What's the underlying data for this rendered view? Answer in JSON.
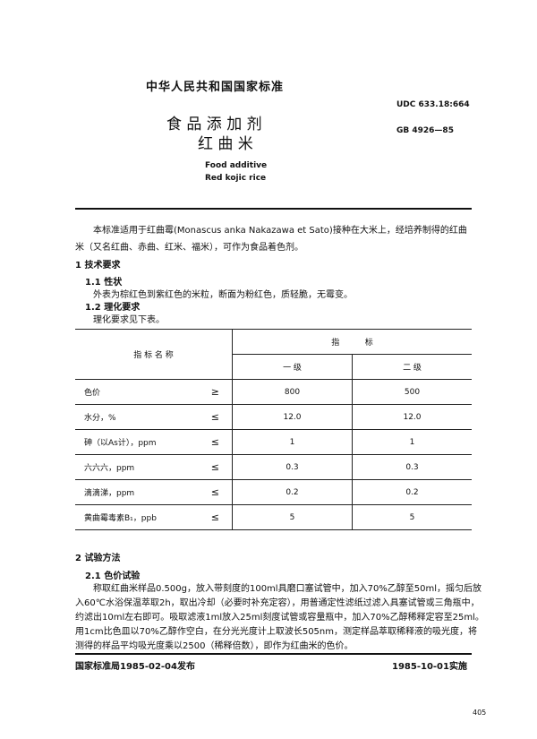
{
  "header": {
    "national_standard": "中华人民共和国国家标准",
    "udc": "UDC 633.18:664",
    "gb_number": "GB 4926—85",
    "title_line1": "食 品 添 加 剂",
    "title_line2": "红 曲 米",
    "english_line1": "Food additive",
    "english_line2": "Red kojic rice"
  },
  "intro": {
    "line1": "本标准适用于红曲霉(Monascus anka Nakazawa et Sato)接种在大米上，经培养制得的红曲",
    "line2": "米（又名红曲、赤曲、红米、福米），可作为食品着色剂。"
  },
  "section1": {
    "heading": "1  技术要求",
    "s11_heading": "1.1  性状",
    "s11_text": "外表为棕红色到紫红色的米粒，断面为粉红色，质轻脆，无霉变。",
    "s12_heading": "1.2  理化要求",
    "s12_text": "理化要求见下表。"
  },
  "table": {
    "col_name": "指 标 名 称",
    "col_index": "指          标",
    "grade1": "一  级",
    "grade2": "二  级",
    "rows": [
      {
        "name": "色价",
        "op": "≥",
        "g1": "800",
        "g2": "500"
      },
      {
        "name": "水分，%",
        "op": "≤",
        "g1": "12.0",
        "g2": "12.0"
      },
      {
        "name": "砷（以As计），ppm",
        "op": "≤",
        "g1": "1",
        "g2": "1"
      },
      {
        "name": "六六六，ppm",
        "op": "≤",
        "g1": "0.3",
        "g2": "0.3"
      },
      {
        "name": "滴滴涕，ppm",
        "op": "≤",
        "g1": "0.2",
        "g2": "0.2"
      },
      {
        "name": "黄曲霉毒素B₁，ppb",
        "op": "≤",
        "g1": "5",
        "g2": "5"
      }
    ]
  },
  "section2": {
    "heading": "2  试验方法",
    "s21_heading": "2.1  色价试验",
    "lines": [
      "称取红曲米样品0.500g，放入带刻度的100ml具磨口塞试管中，加入70%乙醇至50ml，摇匀后放",
      "入60℃水浴保温萃取2h，取出冷却（必要时补充定容），用普通定性滤纸过滤入具塞试管或三角瓶中，",
      "约滤出10ml左右即可。吸取滤液1ml放入25ml刻度试管或容量瓶中，加入70%乙醇稀释定容至25ml。",
      "用1cm比色皿以70%乙醇作空白，在分光光度计上取波长505nm，测定样品萃取稀释液的吸光度，将",
      "测得的样品平均吸光度乘以2500（稀释倍数），即作为红曲米的色价。"
    ]
  },
  "footer": {
    "issued": "国家标准局1985-02-04发布",
    "effective": "1985-10-01实施",
    "page_number": "405"
  }
}
